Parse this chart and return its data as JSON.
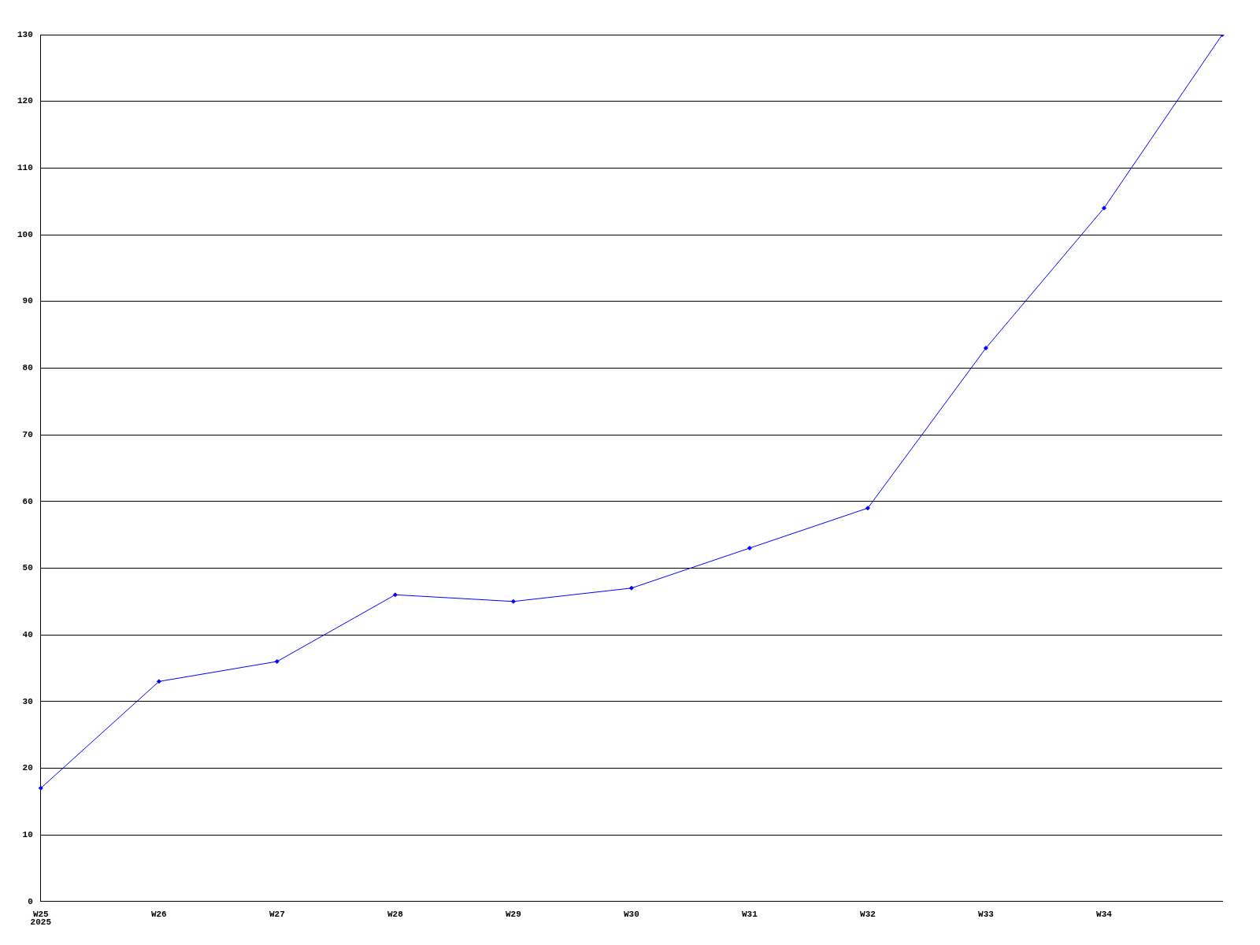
{
  "chart_data": {
    "type": "line",
    "categories": [
      "W25",
      "W26",
      "W27",
      "W28",
      "W29",
      "W30",
      "W31",
      "W32",
      "W33",
      "W34",
      null
    ],
    "series": [
      {
        "color": "#0000ff",
        "values": [
          17,
          33,
          36,
          46,
          45,
          47,
          53,
          59,
          83,
          104,
          130
        ]
      }
    ],
    "ylim": [
      0,
      130
    ],
    "yticks": [
      0,
      10,
      20,
      30,
      40,
      50,
      60,
      70,
      80,
      90,
      100,
      110,
      120,
      130
    ],
    "grid": "y",
    "legend": false,
    "marker": "diamond",
    "line_style": "solid",
    "annotations": [
      "2025"
    ]
  }
}
